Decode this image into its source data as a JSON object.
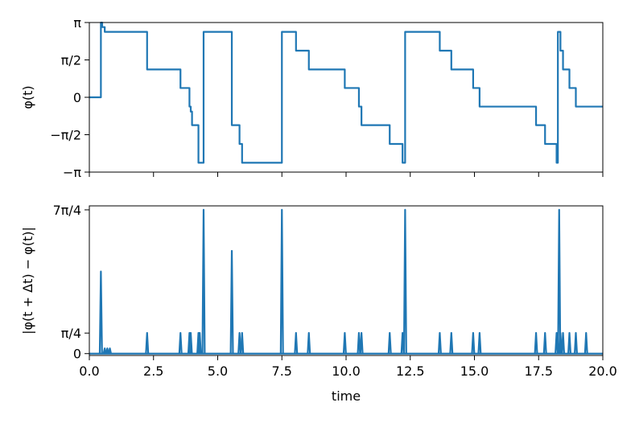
{
  "colors": {
    "series": "#1f77b4",
    "axes": "#000000",
    "background": "#ffffff"
  },
  "chart_data": [
    {
      "type": "line",
      "title": "",
      "xlabel": "",
      "ylabel": "φ(t)",
      "xlim": [
        0,
        20
      ],
      "ylim": [
        -3.14159,
        3.14159
      ],
      "grid": false,
      "y_ticks": [
        {
          "value": 3.14159,
          "label": "π"
        },
        {
          "value": 1.5708,
          "label": "π/2"
        },
        {
          "value": 0,
          "label": "0"
        },
        {
          "value": -1.5708,
          "label": "−π/2"
        },
        {
          "value": -3.14159,
          "label": "−π"
        }
      ],
      "x_ticks": [
        0,
        2.5,
        5.0,
        7.5,
        10.0,
        12.5,
        15.0,
        17.5,
        20.0
      ],
      "x_tick_labels_visible": false,
      "series": [
        {
          "x": [
            0,
            0.45,
            0.45,
            0.5,
            0.5,
            0.6,
            0.6,
            0.7,
            0.7,
            0.8,
            0.8,
            2.25,
            2.25,
            3.55,
            3.55,
            3.9,
            3.9,
            3.95,
            3.95,
            4.0,
            4.0,
            4.25,
            4.25,
            4.3,
            4.3,
            4.45,
            4.45,
            5.55,
            5.55,
            5.85,
            5.85,
            5.95,
            5.95,
            7.5,
            7.5,
            8.05,
            8.05,
            8.55,
            8.55,
            9.95,
            9.95,
            10.5,
            10.5,
            10.6,
            10.6,
            11.7,
            11.7,
            12.2,
            12.2,
            12.25,
            12.25,
            12.3,
            12.3,
            13.65,
            13.65,
            14.1,
            14.1,
            14.95,
            14.95,
            15.2,
            15.2,
            17.4,
            17.4,
            17.75,
            17.75,
            18.2,
            18.2,
            18.25,
            18.25,
            18.3,
            18.3,
            18.35,
            18.35,
            18.45,
            18.45,
            18.7,
            18.7,
            18.95,
            18.95,
            19.35,
            19.35,
            20
          ],
          "y": [
            0,
            0,
            3.14,
            3.14,
            2.95,
            2.95,
            2.75,
            2.75,
            2.75,
            2.75,
            2.75,
            2.75,
            1.17,
            1.17,
            0.39,
            0.39,
            -0.39,
            -0.39,
            -0.6,
            -0.6,
            -1.17,
            -1.17,
            -2.75,
            -2.75,
            -2.75,
            -2.75,
            2.75,
            2.75,
            -1.17,
            -1.17,
            -1.96,
            -1.96,
            -2.75,
            -2.75,
            2.75,
            2.75,
            1.96,
            1.96,
            1.17,
            1.17,
            0.39,
            0.39,
            -0.39,
            -0.39,
            -1.17,
            -1.17,
            -1.96,
            -1.96,
            -2.75,
            -2.75,
            -2.75,
            -2.75,
            2.75,
            2.75,
            1.96,
            1.96,
            1.17,
            1.17,
            0.39,
            0.39,
            -0.39,
            -0.39,
            -1.17,
            -1.17,
            -1.96,
            -1.96,
            -2.75,
            -2.75,
            2.75,
            2.75,
            2.75,
            2.75,
            1.96,
            1.96,
            1.17,
            1.17,
            0.39,
            0.39,
            -0.39,
            -0.39,
            -0.39,
            -0.39
          ]
        }
      ]
    },
    {
      "type": "line",
      "title": "",
      "xlabel": "time",
      "ylabel": "|φ(t + Δt) − φ(t)|",
      "xlim": [
        0,
        20
      ],
      "ylim": [
        -0.07,
        5.65
      ],
      "grid": false,
      "y_ticks": [
        {
          "value": 5.4978,
          "label": "7π/4"
        },
        {
          "value": 0.7854,
          "label": "π/4"
        },
        {
          "value": 0,
          "label": "0"
        }
      ],
      "x_ticks": [
        0,
        2.5,
        5.0,
        7.5,
        10.0,
        12.5,
        15.0,
        17.5,
        20.0
      ],
      "x_tick_labels": [
        "0.0",
        "2.5",
        "5.0",
        "7.5",
        "10.0",
        "12.5",
        "15.0",
        "17.5",
        "20.0"
      ],
      "x_tick_labels_visible": true,
      "series": [
        {
          "spikes": [
            [
              0.45,
              3.14
            ],
            [
              0.6,
              0.2
            ],
            [
              0.7,
              0.2
            ],
            [
              0.8,
              0.2
            ],
            [
              2.25,
              0.79
            ],
            [
              3.55,
              0.79
            ],
            [
              3.9,
              0.79
            ],
            [
              3.95,
              0.79
            ],
            [
              4.25,
              0.79
            ],
            [
              4.3,
              0.79
            ],
            [
              4.45,
              5.5
            ],
            [
              5.55,
              3.93
            ],
            [
              5.85,
              0.79
            ],
            [
              5.95,
              0.79
            ],
            [
              7.5,
              5.5
            ],
            [
              8.05,
              0.79
            ],
            [
              8.55,
              0.79
            ],
            [
              9.95,
              0.79
            ],
            [
              10.5,
              0.79
            ],
            [
              10.6,
              0.79
            ],
            [
              11.7,
              0.79
            ],
            [
              12.2,
              0.79
            ],
            [
              12.3,
              5.5
            ],
            [
              13.65,
              0.79
            ],
            [
              14.1,
              0.79
            ],
            [
              14.95,
              0.79
            ],
            [
              15.2,
              0.79
            ],
            [
              17.4,
              0.79
            ],
            [
              17.75,
              0.79
            ],
            [
              18.2,
              0.79
            ],
            [
              18.3,
              5.5
            ],
            [
              18.35,
              0.79
            ],
            [
              18.45,
              0.79
            ],
            [
              18.7,
              0.79
            ],
            [
              18.95,
              0.79
            ],
            [
              19.35,
              0.79
            ]
          ]
        }
      ]
    }
  ]
}
